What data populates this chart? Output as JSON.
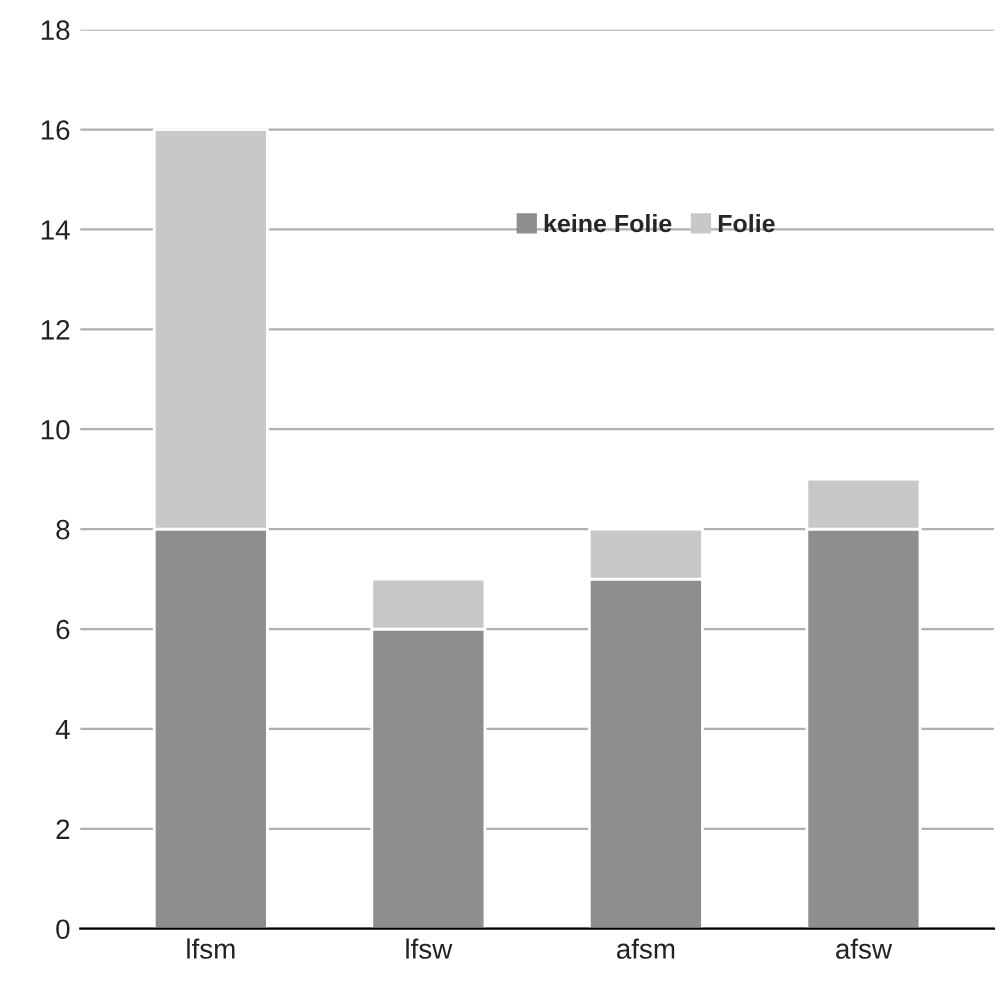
{
  "chart_data": {
    "type": "bar",
    "stacked": true,
    "categories": [
      "lfsm",
      "lfsw",
      "afsm",
      "afsw"
    ],
    "series": [
      {
        "name": "keine Folie",
        "color": "#8e8e8e",
        "values": [
          8,
          6,
          7,
          8
        ]
      },
      {
        "name": "Folie",
        "color": "#c8c8c8",
        "values": [
          8,
          1,
          1,
          1
        ]
      }
    ],
    "ylim": [
      0,
      18
    ],
    "yticks": [
      0,
      2,
      4,
      6,
      8,
      10,
      12,
      14,
      16,
      18
    ],
    "grid": "y",
    "legend": "top"
  }
}
